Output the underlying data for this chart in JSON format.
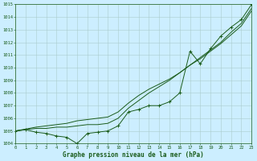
{
  "x": [
    0,
    1,
    2,
    3,
    4,
    5,
    6,
    7,
    8,
    9,
    10,
    11,
    12,
    13,
    14,
    15,
    16,
    17,
    18,
    19,
    20,
    21,
    22,
    23
  ],
  "line_measured": [
    1005.0,
    1005.1,
    1004.9,
    1004.8,
    1004.6,
    1004.5,
    1004.0,
    1004.8,
    1004.9,
    1005.0,
    1005.4,
    1006.5,
    1006.7,
    1007.0,
    1007.0,
    1007.3,
    1008.0,
    1011.3,
    1010.3,
    1011.5,
    1012.5,
    1013.2,
    1013.8,
    1015.0
  ],
  "line_smooth1": [
    1005.0,
    1005.1,
    1005.2,
    1005.2,
    1005.3,
    1005.3,
    1005.4,
    1005.5,
    1005.5,
    1005.6,
    1006.0,
    1006.8,
    1007.4,
    1008.0,
    1008.5,
    1009.0,
    1009.6,
    1010.2,
    1010.8,
    1011.4,
    1012.0,
    1012.8,
    1013.5,
    1014.7
  ],
  "line_smooth2": [
    1005.0,
    1005.15,
    1005.3,
    1005.4,
    1005.5,
    1005.6,
    1005.8,
    1005.9,
    1006.0,
    1006.1,
    1006.5,
    1007.2,
    1007.8,
    1008.3,
    1008.7,
    1009.1,
    1009.6,
    1010.2,
    1010.7,
    1011.3,
    1011.9,
    1012.6,
    1013.3,
    1014.5
  ],
  "bg_color": "#cceeff",
  "grid_color": "#aacccc",
  "line_color": "#1a5c1a",
  "xlabel": "Graphe pression niveau de la mer (hPa)",
  "ylim": [
    1004,
    1015
  ],
  "ytick_min": 1004,
  "ytick_max": 1015,
  "xticks": [
    0,
    1,
    2,
    3,
    4,
    5,
    6,
    7,
    8,
    9,
    10,
    11,
    12,
    13,
    14,
    15,
    16,
    17,
    18,
    19,
    20,
    21,
    22,
    23
  ]
}
